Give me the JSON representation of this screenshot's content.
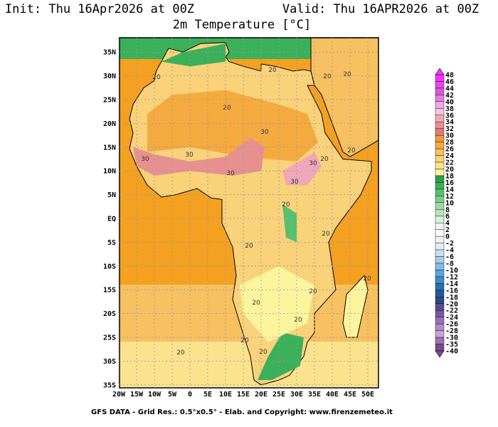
{
  "header": {
    "init": "Init: Thu 16Apr2026 at 00Z",
    "valid": "Valid: Thu 16APR2026 at 00Z",
    "title": "2m Temperature [°C]"
  },
  "map": {
    "lon_ticks": [
      "20W",
      "15W",
      "10W",
      "5W",
      "0",
      "5E",
      "10E",
      "15E",
      "20E",
      "25E",
      "30E",
      "35E",
      "40E",
      "45E",
      "50E"
    ],
    "lat_ticks": [
      "35N",
      "30N",
      "25N",
      "20N",
      "15N",
      "10N",
      "5N",
      "EQ",
      "5S",
      "10S",
      "15S",
      "20S",
      "25S",
      "30S",
      "35S"
    ],
    "contour_labels": [
      20,
      20,
      20,
      20,
      20,
      20,
      20,
      20,
      20,
      20,
      20,
      20,
      20,
      20,
      20,
      20,
      20,
      30,
      30,
      30,
      30,
      30,
      30
    ]
  },
  "colorbar": {
    "levels": [
      48,
      46,
      44,
      42,
      40,
      38,
      36,
      34,
      32,
      30,
      28,
      26,
      24,
      22,
      20,
      18,
      16,
      14,
      12,
      10,
      8,
      6,
      4,
      2,
      0,
      -2,
      -4,
      -6,
      -8,
      -10,
      -12,
      -14,
      -16,
      -18,
      -20,
      -22,
      -24,
      -26,
      -28,
      -30,
      -35,
      -40
    ],
    "colors": [
      "#ff33ff",
      "#ee44ee",
      "#dd55dd",
      "#e07fe0",
      "#eeaaee",
      "#f4c4d8",
      "#f0a8b8",
      "#e89090",
      "#e87878",
      "#f29b3a",
      "#f5aa3f",
      "#f7c060",
      "#f9d27a",
      "#fbe38e",
      "#fdf59e",
      "#2e9e4e",
      "#3bb05a",
      "#55c06e",
      "#78cf88",
      "#98dca3",
      "#b6e8bc",
      "#d4f2d6",
      "#eafaeb",
      "#ffffff",
      "#f2f2f2",
      "#e0eef8",
      "#c8e0f4",
      "#a8cdee",
      "#86b9e6",
      "#5fa3dc",
      "#3d8acb",
      "#2a6fb0",
      "#245a94",
      "#2d4a80",
      "#5a4a90",
      "#7a5aa0",
      "#9a70b4",
      "#b48ac6",
      "#c8a4d4",
      "#a070b0",
      "#7a4a90"
    ]
  },
  "footer": "GFS DATA - Grid Res.: 0.5°x0.5° - Elab. and Copyright: www.firenzemeteo.it"
}
